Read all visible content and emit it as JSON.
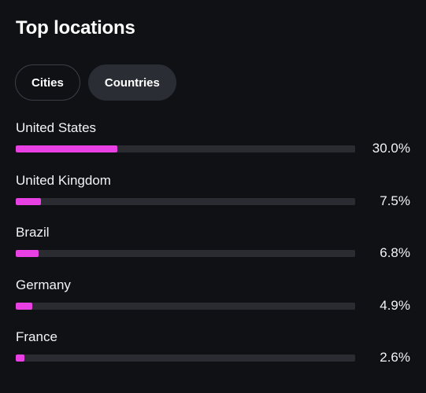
{
  "title": "Top locations",
  "tabs": [
    {
      "label": "Cities",
      "active": false
    },
    {
      "label": "Countries",
      "active": true
    }
  ],
  "colors": {
    "background": "#0f1115",
    "bar_fill": "#e940e4",
    "bar_track": "#2a2c31"
  },
  "locations": [
    {
      "name": "United States",
      "percent_text": "30.0%",
      "percent": 30.0
    },
    {
      "name": "United Kingdom",
      "percent_text": "7.5%",
      "percent": 7.5
    },
    {
      "name": "Brazil",
      "percent_text": "6.8%",
      "percent": 6.8
    },
    {
      "name": "Germany",
      "percent_text": "4.9%",
      "percent": 4.9
    },
    {
      "name": "France",
      "percent_text": "2.6%",
      "percent": 2.6
    }
  ]
}
